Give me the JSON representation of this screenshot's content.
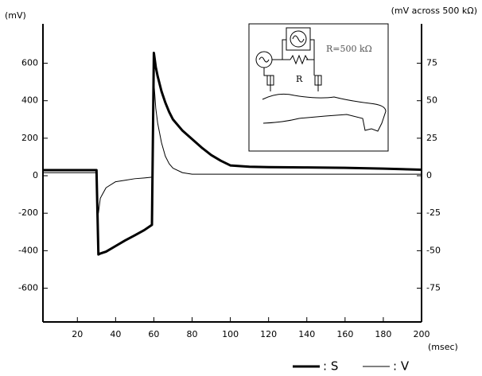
{
  "chart_data": {
    "type": "line",
    "y_label": "(mV)",
    "y2_label": "(mV across 500 kΩ)",
    "x_label": "(msec)",
    "annotations": [
      "R=500  kΩ",
      "R"
    ],
    "x": [
      2,
      10,
      20,
      30,
      31,
      32,
      35,
      40,
      45,
      50,
      55,
      59,
      60,
      61,
      62,
      64,
      66,
      68,
      70,
      75,
      80,
      85,
      90,
      95,
      100,
      110,
      120,
      140,
      160,
      180,
      200
    ],
    "series": [
      {
        "name": ": S",
        "color": "#000000",
        "width": 3,
        "values": [
          30,
          30,
          30,
          30,
          -420,
          -415,
          -405,
          -375,
          -345,
          -318,
          -290,
          -262,
          655,
          580,
          530,
          450,
          390,
          340,
          300,
          240,
          195,
          150,
          110,
          80,
          55,
          48,
          46,
          44,
          42,
          38,
          32
        ]
      },
      {
        "name": ": V",
        "color": "#000000",
        "width": 1,
        "axis": "y2",
        "values": [
          2,
          2,
          2,
          2,
          -25,
          -15,
          -8,
          -4,
          -3,
          -2,
          -1.5,
          -1,
          63,
          45,
          35,
          22,
          13,
          8,
          5,
          2,
          1,
          1,
          1,
          1,
          1,
          1,
          1,
          1,
          1,
          1,
          1
        ]
      }
    ],
    "xlim": [
      2,
      200
    ],
    "xticks": [
      20,
      40,
      60,
      80,
      100,
      120,
      140,
      160,
      180,
      200
    ],
    "ylim": [
      -780,
      810
    ],
    "yticks": [
      -600,
      -400,
      -200,
      0,
      200,
      400,
      600
    ],
    "y2lim": [
      -97.5,
      101.25
    ],
    "y2ticks": [
      -75,
      -50,
      -25,
      0,
      25,
      50,
      75
    ],
    "grid": false
  }
}
